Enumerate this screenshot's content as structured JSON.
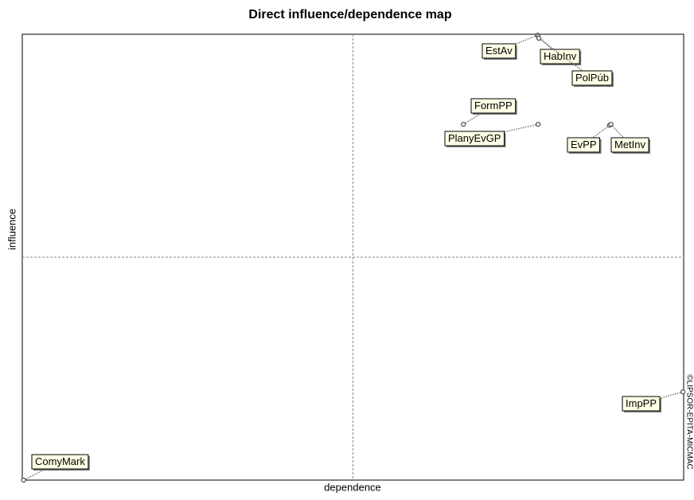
{
  "chart_data": {
    "type": "scatter",
    "title": "Direct influence/dependence map",
    "x_label": "dependence",
    "y_label": "influence",
    "credit": "©LIPSOR-EPITA-MICMAC",
    "labels": [
      "EstAv",
      "HabInv",
      "PolPúb",
      "FormPP",
      "PlanyEvGP",
      "EvPP",
      "MetInv",
      "ImpPP",
      "ComyMark"
    ],
    "x": [
      77.9,
      78.0,
      78.1,
      66.7,
      78.0,
      88.8,
      89.0,
      99.9,
      0.2
    ],
    "y": [
      99.8,
      99.5,
      99.1,
      79.8,
      79.8,
      79.6,
      79.8,
      19.8,
      0
    ],
    "xlim": [
      0,
      100
    ],
    "ylim": [
      0,
      100
    ],
    "color": "#555555"
  }
}
